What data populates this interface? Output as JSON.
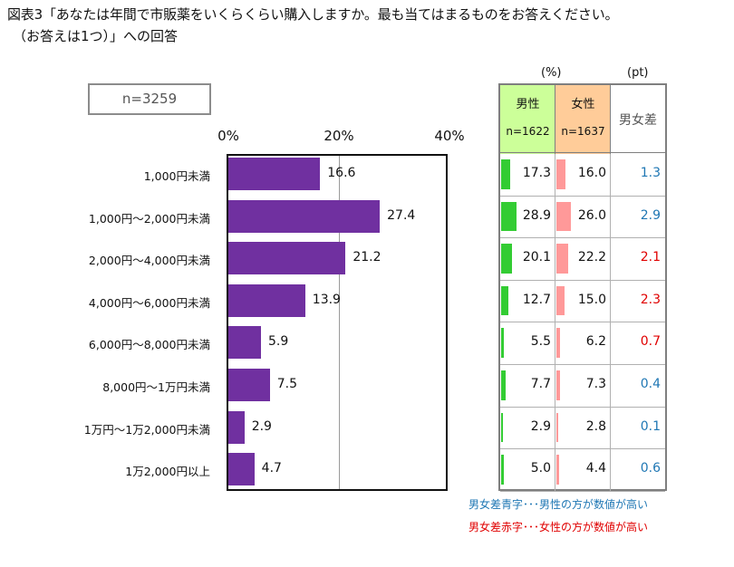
{
  "figure": {
    "title_line1": "図表3「あなたは年間で市販薬をいくらくらい購入しますか。最も当てはまるものをお答えください。",
    "title_line2": "（お答えは1つ）」への回答",
    "sample_label": "n=3259"
  },
  "chart_data": {
    "type": "bar",
    "orientation": "horizontal",
    "xlim": [
      0,
      40
    ],
    "xticks": [
      "0%",
      "20%",
      "40%"
    ],
    "grid": "vertical at 20%",
    "categories": [
      "1,000円未満",
      "1,000円～2,000円未満",
      "2,000円～4,000円未満",
      "4,000円～6,000円未満",
      "6,000円～8,000円未満",
      "8,000円～1万円未満",
      "1万円～1万2,000円未満",
      "1万2,000円以上"
    ],
    "values": [
      16.6,
      27.4,
      21.2,
      13.9,
      5.9,
      7.5,
      2.9,
      4.7
    ],
    "bar_color": "#7030a0"
  },
  "table": {
    "unit_pct": "(%)",
    "unit_pt": "(pt)",
    "male_header": "男性",
    "male_n": "n=1622",
    "female_header": "女性",
    "female_n": "n=1637",
    "diff_header": "男女差",
    "male": [
      17.3,
      28.9,
      20.1,
      12.7,
      5.5,
      7.7,
      2.9,
      5.0
    ],
    "female": [
      16.0,
      26.0,
      22.2,
      15.0,
      6.2,
      7.3,
      2.8,
      4.4
    ],
    "diff": [
      "1.3",
      "2.9",
      "2.1",
      "2.3",
      "0.7",
      "0.4",
      "0.1",
      "0.6"
    ],
    "diff_side": [
      "male",
      "male",
      "female",
      "female",
      "female",
      "male",
      "male",
      "male"
    ],
    "colors": {
      "male_header_bg": "#ccff99",
      "female_header_bg": "#ffcc99",
      "male_bar": "#33cc33",
      "female_bar": "#ff9999",
      "male_text": "#1f77b4",
      "female_text": "#e00000"
    }
  },
  "legend": {
    "blue_note": "男女差青字･･･男性の方が数値が高い",
    "red_note": "男女差赤字･･･女性の方が数値が高い"
  }
}
